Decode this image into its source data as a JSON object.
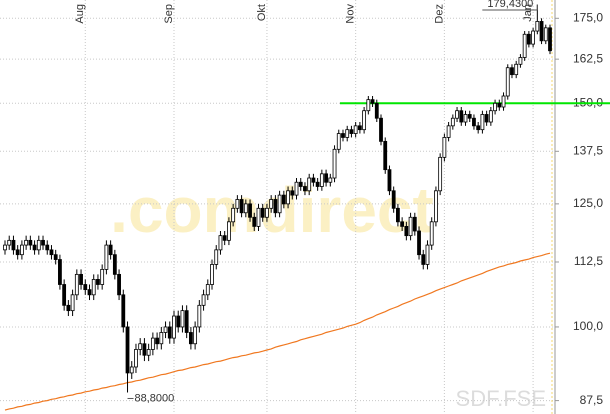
{
  "chart_data": {
    "type": "candlestick",
    "categories": [
      null,
      null,
      null,
      null,
      null,
      null,
      null,
      null,
      null,
      null,
      null,
      null,
      null,
      null,
      null,
      null,
      null,
      null,
      null,
      "Aug",
      null,
      null,
      null,
      null,
      null,
      null,
      null,
      null,
      null,
      null,
      null,
      null,
      null,
      null,
      null,
      null,
      null,
      null,
      null,
      null,
      "Sep",
      null,
      null,
      null,
      null,
      null,
      null,
      null,
      null,
      null,
      null,
      null,
      null,
      null,
      null,
      null,
      null,
      null,
      null,
      null,
      null,
      null,
      "Okt",
      null,
      null,
      null,
      null,
      null,
      null,
      null,
      null,
      null,
      null,
      null,
      null,
      null,
      null,
      null,
      null,
      null,
      null,
      null,
      null,
      "Nov",
      null,
      null,
      null,
      null,
      null,
      null,
      null,
      null,
      null,
      null,
      null,
      null,
      null,
      null,
      null,
      null,
      null,
      null,
      null,
      null,
      "Dez",
      null,
      null,
      null,
      null,
      null,
      null,
      null,
      null,
      null,
      null,
      null,
      null,
      null,
      null,
      null,
      null,
      null,
      null,
      null,
      null,
      "Jan",
      null,
      null,
      null,
      null
    ],
    "open": [
      115,
      116,
      117,
      115,
      114,
      116,
      117,
      116,
      115,
      117,
      116,
      115,
      114,
      113,
      108,
      104,
      103,
      106,
      110,
      108,
      107,
      106,
      109,
      108,
      111,
      116,
      114,
      110,
      106,
      100,
      92,
      93,
      96,
      97,
      95,
      96,
      98,
      97,
      99,
      100,
      98,
      102,
      100,
      103,
      99,
      97,
      100,
      104,
      106,
      108,
      112,
      115,
      118,
      117,
      121,
      124,
      126,
      123,
      125,
      122,
      120,
      124,
      122,
      124,
      126,
      123,
      127,
      125,
      128,
      127,
      130,
      129,
      128,
      131,
      130,
      129,
      132,
      130,
      131,
      138,
      142,
      141,
      143,
      142,
      144,
      143,
      148,
      151,
      150,
      146,
      140,
      133,
      128,
      124,
      121,
      120,
      118,
      122,
      119,
      114,
      112,
      116,
      121,
      128,
      136,
      141,
      144,
      146,
      148,
      145,
      147,
      146,
      144,
      143,
      147,
      145,
      148,
      150,
      149,
      152,
      160,
      158,
      161,
      163,
      170,
      167,
      171,
      174,
      168,
      172
    ],
    "high": [
      117,
      118,
      118,
      116,
      117,
      118,
      118,
      117,
      118,
      118,
      117,
      116,
      115,
      114,
      109,
      105,
      107,
      111,
      111,
      109,
      108,
      110,
      110,
      112,
      117,
      117,
      115,
      111,
      107,
      101,
      94,
      97,
      98,
      98,
      97,
      99,
      99,
      100,
      101,
      101,
      103,
      103,
      104,
      104,
      100,
      101,
      105,
      107,
      109,
      113,
      116,
      119,
      119,
      122,
      125,
      127,
      127,
      126,
      126,
      123,
      125,
      125,
      125,
      127,
      127,
      128,
      128,
      129,
      129,
      131,
      131,
      130,
      132,
      132,
      131,
      133,
      133,
      132,
      139,
      143,
      143,
      144,
      144,
      145,
      145,
      149,
      152,
      152,
      151,
      147,
      141,
      134,
      129,
      125,
      122,
      121,
      123,
      123,
      120,
      115,
      117,
      122,
      129,
      137,
      142,
      145,
      147,
      149,
      149,
      148,
      148,
      147,
      145,
      148,
      148,
      149,
      151,
      151,
      153,
      161,
      161,
      162,
      164,
      171,
      171,
      172,
      179.43,
      175,
      173,
      173
    ],
    "low": [
      114,
      115,
      114,
      113,
      113,
      115,
      115,
      114,
      114,
      115,
      114,
      113,
      112,
      107,
      103,
      102,
      102,
      105,
      107,
      106,
      105,
      105,
      107,
      107,
      110,
      113,
      109,
      105,
      99,
      88.8,
      91,
      92,
      95,
      94,
      94,
      95,
      96,
      96,
      98,
      97,
      97,
      99,
      99,
      98,
      96,
      96,
      99,
      103,
      105,
      107,
      111,
      114,
      116,
      116,
      120,
      123,
      122,
      122,
      121,
      119,
      119,
      121,
      121,
      123,
      122,
      122,
      124,
      124,
      126,
      126,
      128,
      127,
      127,
      129,
      128,
      128,
      129,
      129,
      130,
      137,
      140,
      140,
      141,
      141,
      142,
      142,
      147,
      149,
      145,
      139,
      132,
      127,
      123,
      120,
      119,
      117,
      117,
      118,
      113,
      111,
      111,
      115,
      120,
      127,
      135,
      140,
      143,
      145,
      144,
      144,
      145,
      143,
      142,
      142,
      144,
      144,
      147,
      148,
      148,
      151,
      157,
      157,
      160,
      162,
      166,
      166,
      170,
      167,
      167,
      164
    ],
    "close": [
      116,
      117,
      115,
      114,
      116,
      117,
      116,
      115,
      117,
      116,
      115,
      114,
      113,
      108,
      104,
      103,
      106,
      110,
      108,
      107,
      106,
      109,
      108,
      111,
      116,
      114,
      110,
      106,
      100,
      92,
      93,
      96,
      97,
      95,
      96,
      98,
      97,
      99,
      100,
      98,
      102,
      100,
      103,
      99,
      97,
      100,
      104,
      106,
      108,
      112,
      115,
      118,
      117,
      121,
      124,
      126,
      123,
      125,
      122,
      120,
      124,
      122,
      124,
      126,
      123,
      127,
      125,
      128,
      127,
      130,
      129,
      128,
      131,
      130,
      129,
      132,
      130,
      131,
      138,
      142,
      141,
      143,
      142,
      144,
      143,
      148,
      151,
      150,
      146,
      140,
      133,
      128,
      124,
      121,
      120,
      118,
      122,
      119,
      114,
      112,
      116,
      121,
      128,
      136,
      141,
      144,
      146,
      148,
      145,
      147,
      146,
      144,
      143,
      147,
      145,
      148,
      150,
      149,
      152,
      160,
      158,
      161,
      163,
      170,
      167,
      171,
      174,
      168,
      172,
      165
    ],
    "candle_color": "#000000",
    "moving_average": {
      "color": "#f07820",
      "values": [
        86.0,
        86.2,
        86.3,
        86.5,
        86.6,
        86.8,
        86.9,
        87.1,
        87.2,
        87.4,
        87.5,
        87.7,
        87.8,
        88.0,
        88.1,
        88.3,
        88.4,
        88.6,
        88.7,
        88.9,
        89.0,
        89.2,
        89.3,
        89.5,
        89.6,
        89.8,
        89.9,
        90.1,
        90.2,
        90.4,
        90.5,
        90.7,
        90.8,
        91.0,
        91.2,
        91.3,
        91.5,
        91.7,
        91.8,
        92.0,
        92.2,
        92.4,
        92.5,
        92.7,
        92.9,
        93.0,
        93.2,
        93.4,
        93.5,
        93.7,
        93.9,
        94.0,
        94.2,
        94.4,
        94.6,
        94.7,
        94.9,
        95.0,
        95.2,
        95.4,
        95.5,
        95.7,
        95.9,
        96.1,
        96.4,
        96.6,
        96.8,
        97.0,
        97.2,
        97.4,
        97.7,
        97.9,
        98.1,
        98.3,
        98.5,
        98.7,
        99.0,
        99.2,
        99.4,
        99.6,
        99.8,
        100.1,
        100.3,
        100.5,
        100.8,
        101.2,
        101.5,
        101.8,
        102.2,
        102.5,
        102.8,
        103.2,
        103.5,
        103.8,
        104.2,
        104.5,
        104.8,
        105.2,
        105.5,
        105.8,
        106.1,
        106.4,
        106.8,
        107.1,
        107.4,
        107.7,
        108.0,
        108.3,
        108.7,
        109.0,
        109.3,
        109.6,
        109.9,
        110.2,
        110.6,
        110.9,
        111.2,
        111.5,
        111.7,
        112.0,
        112.2,
        112.4,
        112.7,
        112.9,
        113.1,
        113.4,
        113.6,
        113.8,
        114.1,
        114.3
      ]
    },
    "resistance": {
      "value": 150,
      "color": "#00e600"
    },
    "ylim": [
      85.4,
      180.9
    ],
    "log_scale": true,
    "grid": true,
    "yticks": [
      {
        "value": 87.5,
        "label": "87,5"
      },
      {
        "value": 100,
        "label": "100,0"
      },
      {
        "value": 112.5,
        "label": "112,5"
      },
      {
        "value": 125,
        "label": "125,0"
      },
      {
        "value": 137.5,
        "label": "137,5"
      },
      {
        "value": 150,
        "label": "150,0"
      },
      {
        "value": 162.5,
        "label": "162,5"
      },
      {
        "value": 175,
        "label": "175,0"
      }
    ],
    "max_label": "179,4300",
    "min_label": "88,8000",
    "watermark": ".comdirect",
    "symbol": "SDF.FSE"
  }
}
